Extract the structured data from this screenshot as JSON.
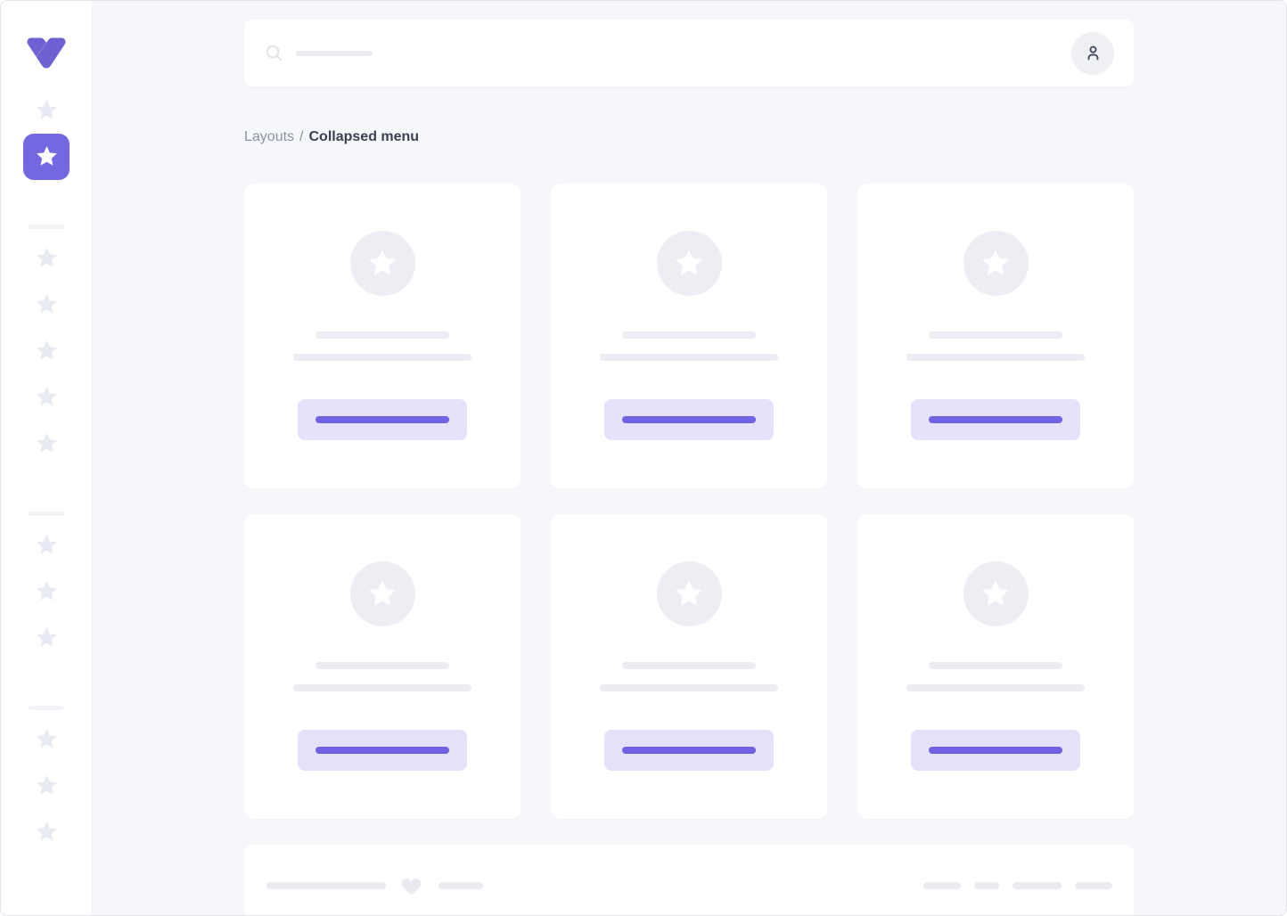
{
  "window": {
    "bg": "#f6f7fa",
    "surface": "#ffffff",
    "border": "#e3e4ea"
  },
  "colors": {
    "accent": "#7468e1",
    "accent_logo": "#6c60d2",
    "accent_button_line": "#7062e0",
    "accent_button_bg": "#e5e1fb",
    "skeleton_gray": "#ebedf2",
    "sidebar_icon_gray": "#e9ebf2",
    "text_muted": "#8e92a3",
    "text_strong": "#3c3f52",
    "avatar_icon": "#4b4e63"
  },
  "sidebar": {
    "logo_icon": "brand-v-logo",
    "groups": [
      {
        "items": [
          {
            "icon": "star",
            "active": false
          },
          {
            "icon": "star",
            "active": true
          }
        ]
      },
      {
        "items": [
          {
            "icon": "star",
            "active": false
          },
          {
            "icon": "star",
            "active": false
          },
          {
            "icon": "star",
            "active": false
          },
          {
            "icon": "star",
            "active": false
          },
          {
            "icon": "star",
            "active": false
          }
        ]
      },
      {
        "items": [
          {
            "icon": "star",
            "active": false
          },
          {
            "icon": "star",
            "active": false
          },
          {
            "icon": "star",
            "active": false
          }
        ]
      },
      {
        "items": [
          {
            "icon": "star",
            "active": false
          },
          {
            "icon": "star",
            "active": false
          },
          {
            "icon": "star",
            "active": false
          }
        ]
      }
    ]
  },
  "topbar": {
    "search_icon": "magnifier",
    "search_value": "",
    "search_placeholder_skeleton": true,
    "avatar_icon": "person"
  },
  "breadcrumb": {
    "parent": "Layouts",
    "separator": "/",
    "current": "Collapsed menu"
  },
  "cards": [
    {
      "media_icon": "star",
      "skeleton_lines": 2,
      "has_button": true
    },
    {
      "media_icon": "star",
      "skeleton_lines": 2,
      "has_button": true
    },
    {
      "media_icon": "star",
      "skeleton_lines": 2,
      "has_button": true
    },
    {
      "media_icon": "star",
      "skeleton_lines": 2,
      "has_button": true
    },
    {
      "media_icon": "star",
      "skeleton_lines": 2,
      "has_button": true
    },
    {
      "media_icon": "star",
      "skeleton_lines": 2,
      "has_button": true
    }
  ],
  "footer": {
    "heart_icon": "heart",
    "left_lines": [
      134,
      50
    ],
    "right_pills": [
      42,
      28,
      55,
      42
    ]
  }
}
